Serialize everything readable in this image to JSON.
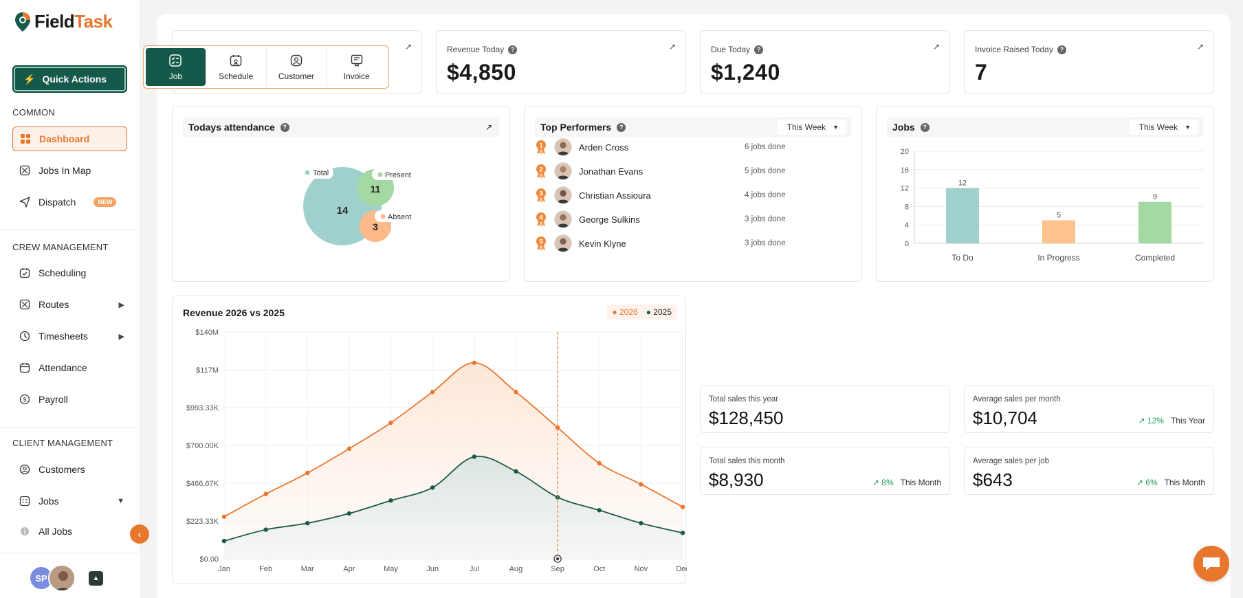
{
  "brand": {
    "name_a": "Field",
    "name_b": "Task"
  },
  "sidebar": {
    "quick_actions": "Quick Actions",
    "section_common": "COMMON",
    "section_crew": "CREW MANAGEMENT",
    "section_client": "CLIENT MANAGEMENT",
    "items": {
      "dashboard": "Dashboard",
      "jobs_in_map": "Jobs In Map",
      "dispatch": "Dispatch",
      "dispatch_badge": "NEW",
      "scheduling": "Scheduling",
      "routes": "Routes",
      "timesheets": "Timesheets",
      "attendance": "Attendance",
      "payroll": "Payroll",
      "customers": "Customers",
      "jobs": "Jobs",
      "all_jobs": "All Jobs"
    },
    "user_initials": "SP"
  },
  "quick_menu": {
    "job": "Job",
    "schedule": "Schedule",
    "customer": "Customer",
    "invoice": "Invoice"
  },
  "kpis": {
    "revenue_today": {
      "label": "Revenue Today",
      "value": "$4,850"
    },
    "due_today": {
      "label": "Due Today",
      "value": "$1,240"
    },
    "invoice_raised": {
      "label": "Invoice Raised Today",
      "value": "7"
    }
  },
  "attendance": {
    "title": "Todays attendance",
    "total_label": "Total",
    "total": "14",
    "present_label": "Present",
    "present": "11",
    "absent_label": "Absent",
    "absent": "3"
  },
  "top_performers": {
    "title": "Top Performers",
    "period": "This Week",
    "rows": [
      {
        "rank": "1",
        "name": "Arden Cross",
        "done": "6 jobs done"
      },
      {
        "rank": "2",
        "name": "Jonathan Evans",
        "done": "5 jobs done"
      },
      {
        "rank": "3",
        "name": "Christian Assioura",
        "done": "4 jobs done"
      },
      {
        "rank": "4",
        "name": "George Sulkins",
        "done": "3 jobs done"
      },
      {
        "rank": "5",
        "name": "Kevin Klyne",
        "done": "3 jobs done"
      }
    ]
  },
  "jobs_panel": {
    "title": "Jobs",
    "period": "This Week"
  },
  "revenue_panel": {
    "title": "Revenue 2026 vs 2025"
  },
  "stats": {
    "total_year": {
      "label": "Total sales this year",
      "value": "$128,450"
    },
    "avg_month": {
      "label": "Average sales per month",
      "value": "$10,704",
      "pct": "12%",
      "period": "This Year"
    },
    "total_month": {
      "label": "Total sales this month",
      "value": "$8,930",
      "pct": "8%",
      "period": "This Month"
    },
    "avg_job": {
      "label": "Average sales per job",
      "value": "$643",
      "pct": "6%",
      "period": "This Month"
    }
  },
  "colors": {
    "brand_green": "#14594a",
    "accent_orange": "#e8772e",
    "todo": "#9fd0cc",
    "in_progress": "#fdc28d",
    "completed": "#a5d9a3"
  },
  "chart_data": [
    {
      "type": "bar",
      "title": "Jobs",
      "categories": [
        "To Do",
        "In Progress",
        "Completed"
      ],
      "values": [
        12,
        5,
        9
      ],
      "ylim": [
        0,
        20
      ],
      "yticks": [
        0,
        4,
        8,
        12,
        16,
        20
      ],
      "grid": true
    },
    {
      "type": "line",
      "title": "Revenue 2026 vs 2025",
      "categories": [
        "Jan",
        "Feb",
        "Mar",
        "Apr",
        "May",
        "Jun",
        "Jul",
        "Aug",
        "Sep",
        "Oct",
        "Nov",
        "Dec"
      ],
      "ylim": [
        0,
        140000000
      ],
      "ytick_labels": [
        "$0.00",
        "$223.33K",
        "$466.67K",
        "$700.00K",
        "$993.33K",
        "$117M",
        "$140M"
      ],
      "series": [
        {
          "name": "2026",
          "color": "#e8772e",
          "values": [
            26000000,
            40000000,
            53000000,
            68000000,
            84000000,
            103000000,
            121000000,
            103000000,
            81000000,
            59000000,
            46000000,
            32000000
          ]
        },
        {
          "name": "2025",
          "color": "#1c5a48",
          "values": [
            11000000,
            18000000,
            22000000,
            28000000,
            36000000,
            44000000,
            63000000,
            54000000,
            38000000,
            30000000,
            22000000,
            16000000
          ]
        }
      ],
      "highlight_category": "Sep",
      "legend_position": "top-right",
      "grid": true
    },
    {
      "type": "bubble",
      "title": "Todays attendance",
      "categories": [
        "Total",
        "Present",
        "Absent"
      ],
      "values": [
        14,
        11,
        3
      ]
    }
  ]
}
